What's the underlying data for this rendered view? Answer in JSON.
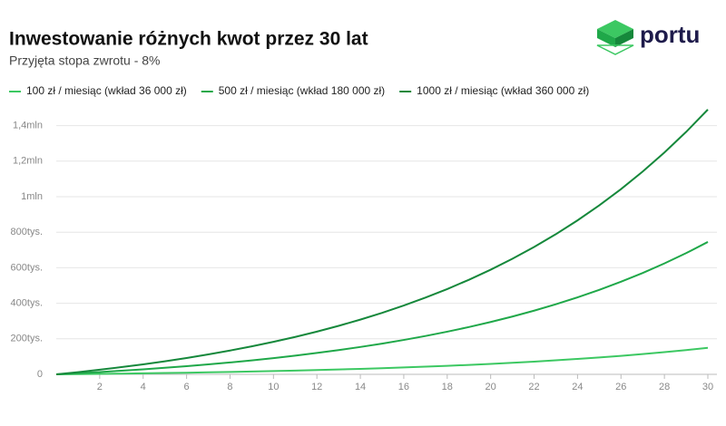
{
  "logo": "portu",
  "chart_data": {
    "type": "line",
    "title": "Inwestowanie różnych kwot przez 30 lat",
    "subtitle": "Przyjęta stopa zwrotu - 8%",
    "x": [
      0,
      1,
      2,
      3,
      4,
      5,
      6,
      7,
      8,
      9,
      10,
      11,
      12,
      13,
      14,
      15,
      16,
      17,
      18,
      19,
      20,
      21,
      22,
      23,
      24,
      25,
      26,
      27,
      28,
      29,
      30
    ],
    "xlim": [
      0,
      30
    ],
    "xticks": [
      2,
      4,
      6,
      8,
      10,
      12,
      14,
      16,
      18,
      20,
      22,
      24,
      26,
      28,
      30
    ],
    "ylim": [
      0,
      1500000
    ],
    "yticks": [
      0,
      {
        "value": 200000,
        "label": "200tys."
      },
      {
        "value": 400000,
        "label": "400tys."
      },
      {
        "value": 600000,
        "label": "600tys."
      },
      {
        "value": 800000,
        "label": "800tys."
      },
      {
        "value": 1000000,
        "label": "1mln"
      },
      {
        "value": 1200000,
        "label": "1,2mln"
      },
      {
        "value": 1400000,
        "label": "1,4mln"
      }
    ],
    "grid": true,
    "legend": "top-left",
    "series": [
      {
        "name": "100 zł / miesiąc (wkład 36 000 zł)",
        "color": "#3cc862",
        "values": [
          0,
          1245,
          2593,
          4054,
          5635,
          7348,
          9203,
          11211,
          13387,
          15743,
          18295,
          21058,
          24051,
          27293,
          30803,
          34604,
          38722,
          43181,
          48010,
          53239,
          58903,
          65037,
          71680,
          78875,
          86666,
          95104,
          104243,
          114140,
          124859,
          136467,
          149039
        ]
      },
      {
        "name": "500 zł / miesiąc (wkład 180 000 zł)",
        "color": "#1fa849",
        "values": [
          0,
          6225,
          12967,
          20268,
          28175,
          36739,
          46013,
          56057,
          66935,
          78716,
          91475,
          105292,
          120256,
          136463,
          154014,
          173022,
          193608,
          215903,
          240048,
          266196,
          294516,
          325185,
          358401,
          394373,
          433331,
          475522,
          521216,
          570702,
          624295,
          682336,
          745194
        ]
      },
      {
        "name": "1000 zł / miesiąc (wkład 360 000 zł)",
        "color": "#15883b",
        "values": [
          0,
          12450,
          25933,
          40536,
          56350,
          73478,
          92026,
          112114,
          133870,
          157432,
          182949,
          210584,
          240512,
          272925,
          308028,
          346044,
          387216,
          431805,
          480095,
          532392,
          589031,
          650370,
          716801,
          788745,
          866661,
          951044,
          1042431,
          1141403,
          1248590,
          1364672,
          1490388
        ]
      }
    ]
  }
}
